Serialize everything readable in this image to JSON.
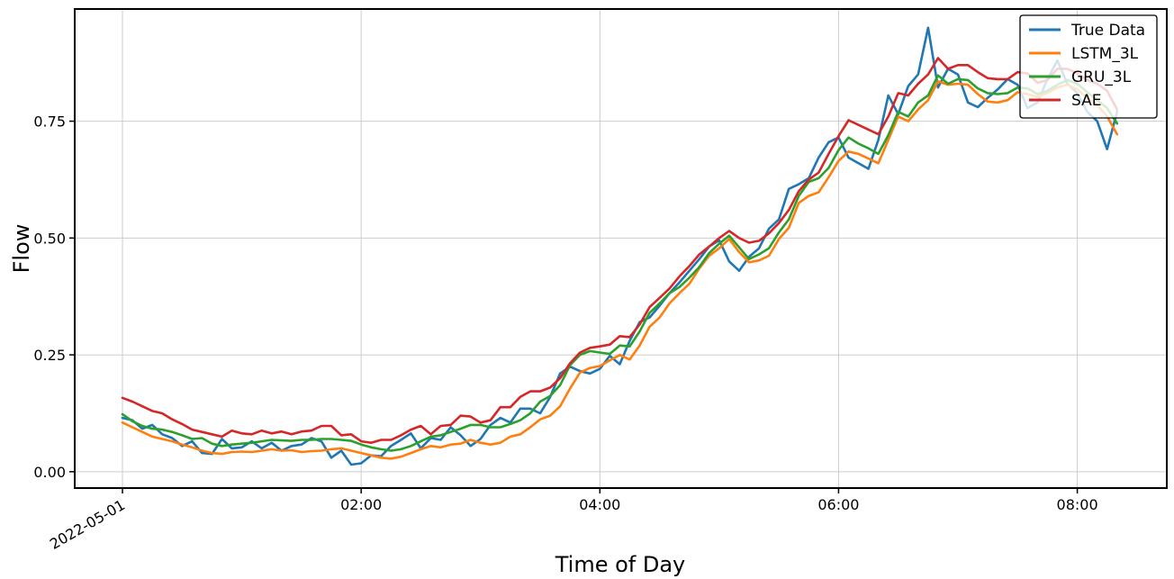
{
  "chart_data": {
    "type": "line",
    "xlabel": "Time of Day",
    "ylabel": "Flow",
    "x_start": "2022-05-01 00:00",
    "x_step_minutes": 5,
    "x_ticks": [
      {
        "hour": 0,
        "label": "2022-05-01"
      },
      {
        "hour": 2,
        "label": "02:00"
      },
      {
        "hour": 4,
        "label": "04:00"
      },
      {
        "hour": 6,
        "label": "06:00"
      },
      {
        "hour": 8,
        "label": "08:00"
      }
    ],
    "y_ticks": [
      0.0,
      0.25,
      0.5,
      0.75
    ],
    "y_tick_labels": [
      "0.00",
      "0.25",
      "0.50",
      "0.75"
    ],
    "xlim_hours": [
      -0.4,
      8.75
    ],
    "ylim": [
      -0.035,
      0.99
    ],
    "grid": true,
    "legend_position": "top-right",
    "series": [
      {
        "name": "True Data",
        "color": "#1f77b4",
        "values": [
          0.115,
          0.11,
          0.092,
          0.1,
          0.08,
          0.072,
          0.055,
          0.065,
          0.04,
          0.038,
          0.07,
          0.05,
          0.052,
          0.065,
          0.05,
          0.062,
          0.045,
          0.055,
          0.058,
          0.072,
          0.065,
          0.03,
          0.045,
          0.015,
          0.018,
          0.035,
          0.033,
          0.055,
          0.068,
          0.082,
          0.05,
          0.072,
          0.068,
          0.095,
          0.078,
          0.055,
          0.07,
          0.1,
          0.115,
          0.105,
          0.135,
          0.135,
          0.125,
          0.16,
          0.21,
          0.225,
          0.215,
          0.21,
          0.22,
          0.248,
          0.23,
          0.28,
          0.32,
          0.33,
          0.355,
          0.382,
          0.405,
          0.43,
          0.455,
          0.482,
          0.495,
          0.45,
          0.43,
          0.46,
          0.478,
          0.52,
          0.54,
          0.605,
          0.615,
          0.628,
          0.672,
          0.705,
          0.715,
          0.672,
          0.66,
          0.648,
          0.71,
          0.805,
          0.765,
          0.825,
          0.85,
          0.95,
          0.822,
          0.862,
          0.85,
          0.79,
          0.78,
          0.8,
          0.818,
          0.84,
          0.828,
          0.778,
          0.79,
          0.84,
          0.88,
          0.83,
          0.81,
          0.77,
          0.75,
          0.69,
          0.77
        ]
      },
      {
        "name": "LSTM_3L",
        "color": "#ff7f0e",
        "values": [
          0.105,
          0.095,
          0.085,
          0.075,
          0.07,
          0.065,
          0.058,
          0.052,
          0.045,
          0.04,
          0.038,
          0.042,
          0.043,
          0.042,
          0.045,
          0.048,
          0.045,
          0.046,
          0.042,
          0.044,
          0.045,
          0.048,
          0.05,
          0.045,
          0.04,
          0.035,
          0.03,
          0.028,
          0.032,
          0.04,
          0.048,
          0.055,
          0.052,
          0.058,
          0.06,
          0.068,
          0.062,
          0.058,
          0.062,
          0.075,
          0.08,
          0.095,
          0.112,
          0.12,
          0.14,
          0.178,
          0.212,
          0.222,
          0.226,
          0.238,
          0.25,
          0.24,
          0.27,
          0.31,
          0.33,
          0.36,
          0.382,
          0.402,
          0.435,
          0.462,
          0.478,
          0.498,
          0.47,
          0.448,
          0.452,
          0.462,
          0.498,
          0.522,
          0.575,
          0.59,
          0.598,
          0.63,
          0.665,
          0.685,
          0.68,
          0.67,
          0.66,
          0.71,
          0.76,
          0.75,
          0.775,
          0.795,
          0.835,
          0.828,
          0.83,
          0.828,
          0.808,
          0.792,
          0.79,
          0.795,
          0.812,
          0.808,
          0.802,
          0.81,
          0.822,
          0.828,
          0.818,
          0.8,
          0.785,
          0.76,
          0.722
        ]
      },
      {
        "name": "GRU_3L",
        "color": "#2ca02c",
        "values": [
          0.123,
          0.108,
          0.098,
          0.092,
          0.09,
          0.085,
          0.078,
          0.07,
          0.072,
          0.06,
          0.055,
          0.058,
          0.06,
          0.062,
          0.065,
          0.068,
          0.067,
          0.066,
          0.068,
          0.068,
          0.07,
          0.07,
          0.068,
          0.066,
          0.058,
          0.052,
          0.048,
          0.045,
          0.048,
          0.055,
          0.065,
          0.075,
          0.078,
          0.085,
          0.092,
          0.1,
          0.1,
          0.095,
          0.095,
          0.102,
          0.11,
          0.125,
          0.15,
          0.162,
          0.185,
          0.228,
          0.25,
          0.258,
          0.255,
          0.252,
          0.27,
          0.268,
          0.3,
          0.34,
          0.36,
          0.382,
          0.395,
          0.415,
          0.438,
          0.468,
          0.488,
          0.505,
          0.48,
          0.455,
          0.465,
          0.478,
          0.512,
          0.54,
          0.59,
          0.62,
          0.628,
          0.65,
          0.688,
          0.715,
          0.702,
          0.692,
          0.68,
          0.72,
          0.77,
          0.76,
          0.79,
          0.805,
          0.848,
          0.83,
          0.84,
          0.838,
          0.82,
          0.81,
          0.808,
          0.81,
          0.822,
          0.82,
          0.808,
          0.815,
          0.828,
          0.838,
          0.83,
          0.812,
          0.795,
          0.778,
          0.745
        ]
      },
      {
        "name": "SAE",
        "color": "#d62728",
        "values": [
          0.158,
          0.15,
          0.14,
          0.13,
          0.125,
          0.112,
          0.102,
          0.09,
          0.085,
          0.08,
          0.075,
          0.088,
          0.082,
          0.08,
          0.088,
          0.082,
          0.086,
          0.08,
          0.086,
          0.088,
          0.098,
          0.098,
          0.078,
          0.08,
          0.065,
          0.062,
          0.068,
          0.068,
          0.078,
          0.09,
          0.098,
          0.08,
          0.098,
          0.1,
          0.12,
          0.118,
          0.105,
          0.11,
          0.138,
          0.138,
          0.16,
          0.172,
          0.172,
          0.18,
          0.2,
          0.232,
          0.255,
          0.265,
          0.268,
          0.272,
          0.29,
          0.288,
          0.315,
          0.352,
          0.372,
          0.392,
          0.418,
          0.44,
          0.465,
          0.482,
          0.5,
          0.515,
          0.5,
          0.49,
          0.494,
          0.51,
          0.532,
          0.56,
          0.6,
          0.625,
          0.64,
          0.68,
          0.718,
          0.752,
          0.742,
          0.732,
          0.722,
          0.76,
          0.81,
          0.805,
          0.83,
          0.85,
          0.885,
          0.862,
          0.87,
          0.87,
          0.855,
          0.842,
          0.84,
          0.84,
          0.855,
          0.852,
          0.832,
          0.838,
          0.862,
          0.862,
          0.852,
          0.838,
          0.83,
          0.815,
          0.775
        ]
      }
    ]
  }
}
